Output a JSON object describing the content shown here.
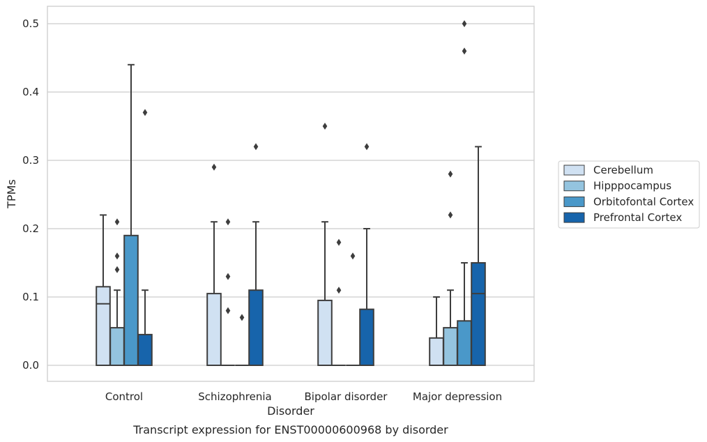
{
  "chart_data": {
    "type": "box",
    "caption": "Transcript expression for ENST00000600968 by disorder",
    "xlabel": "Disorder",
    "ylabel": "TPMs",
    "ylim": [
      -0.025,
      0.525
    ],
    "yticks": [
      0.0,
      0.1,
      0.2,
      0.3,
      0.4,
      0.5
    ],
    "ytick_labels": [
      "0.0",
      "0.1",
      "0.2",
      "0.3",
      "0.4",
      "0.5"
    ],
    "grid": "horizontal",
    "legend_position": "right",
    "categories": [
      "Control",
      "Schizophrenia",
      "Bipolar disorder",
      "Major depression"
    ],
    "series": [
      {
        "name": "Cerebellum",
        "color": "#d0e1f2",
        "boxes": [
          {
            "q1": 0.0,
            "median": 0.09,
            "q3": 0.115,
            "whisker_low": 0.0,
            "whisker_high": 0.22,
            "outliers": []
          },
          {
            "q1": 0.0,
            "median": 0.0,
            "q3": 0.105,
            "whisker_low": 0.0,
            "whisker_high": 0.21,
            "outliers": [
              0.29
            ]
          },
          {
            "q1": 0.0,
            "median": 0.0,
            "q3": 0.095,
            "whisker_low": 0.0,
            "whisker_high": 0.21,
            "outliers": [
              0.35
            ]
          },
          {
            "q1": 0.0,
            "median": 0.0,
            "q3": 0.04,
            "whisker_low": 0.0,
            "whisker_high": 0.1,
            "outliers": []
          }
        ]
      },
      {
        "name": "Hipppocampus",
        "color": "#94c4df",
        "boxes": [
          {
            "q1": 0.0,
            "median": 0.0,
            "q3": 0.055,
            "whisker_low": 0.0,
            "whisker_high": 0.11,
            "outliers": [
              0.14,
              0.16,
              0.21
            ]
          },
          {
            "q1": 0.0,
            "median": 0.0,
            "q3": 0.0,
            "whisker_low": 0.0,
            "whisker_high": 0.0,
            "outliers": [
              0.08,
              0.13,
              0.21
            ]
          },
          {
            "q1": 0.0,
            "median": 0.0,
            "q3": 0.0,
            "whisker_low": 0.0,
            "whisker_high": 0.0,
            "outliers": [
              0.11,
              0.18
            ]
          },
          {
            "q1": 0.0,
            "median": 0.0,
            "q3": 0.055,
            "whisker_low": 0.0,
            "whisker_high": 0.11,
            "outliers": [
              0.22,
              0.28
            ]
          }
        ]
      },
      {
        "name": "Orbitofontal Cortex",
        "color": "#4a98c9",
        "boxes": [
          {
            "q1": 0.0,
            "median": 0.0,
            "q3": 0.19,
            "whisker_low": 0.0,
            "whisker_high": 0.44,
            "outliers": []
          },
          {
            "q1": 0.0,
            "median": 0.0,
            "q3": 0.0,
            "whisker_low": 0.0,
            "whisker_high": 0.0,
            "outliers": [
              0.07
            ]
          },
          {
            "q1": 0.0,
            "median": 0.0,
            "q3": 0.0,
            "whisker_low": 0.0,
            "whisker_high": 0.0,
            "outliers": [
              0.16
            ]
          },
          {
            "q1": 0.0,
            "median": 0.0,
            "q3": 0.065,
            "whisker_low": 0.0,
            "whisker_high": 0.15,
            "outliers": [
              0.46,
              0.5
            ]
          }
        ]
      },
      {
        "name": "Prefrontal Cortex",
        "color": "#1764ab",
        "boxes": [
          {
            "q1": 0.0,
            "median": 0.0,
            "q3": 0.045,
            "whisker_low": 0.0,
            "whisker_high": 0.11,
            "outliers": [
              0.37
            ]
          },
          {
            "q1": 0.0,
            "median": 0.0,
            "q3": 0.11,
            "whisker_low": 0.0,
            "whisker_high": 0.21,
            "outliers": [
              0.32
            ]
          },
          {
            "q1": 0.0,
            "median": 0.0,
            "q3": 0.082,
            "whisker_low": 0.0,
            "whisker_high": 0.2,
            "outliers": [
              0.32
            ]
          },
          {
            "q1": 0.0,
            "median": 0.105,
            "q3": 0.15,
            "whisker_low": 0.0,
            "whisker_high": 0.32,
            "outliers": []
          }
        ]
      }
    ]
  }
}
